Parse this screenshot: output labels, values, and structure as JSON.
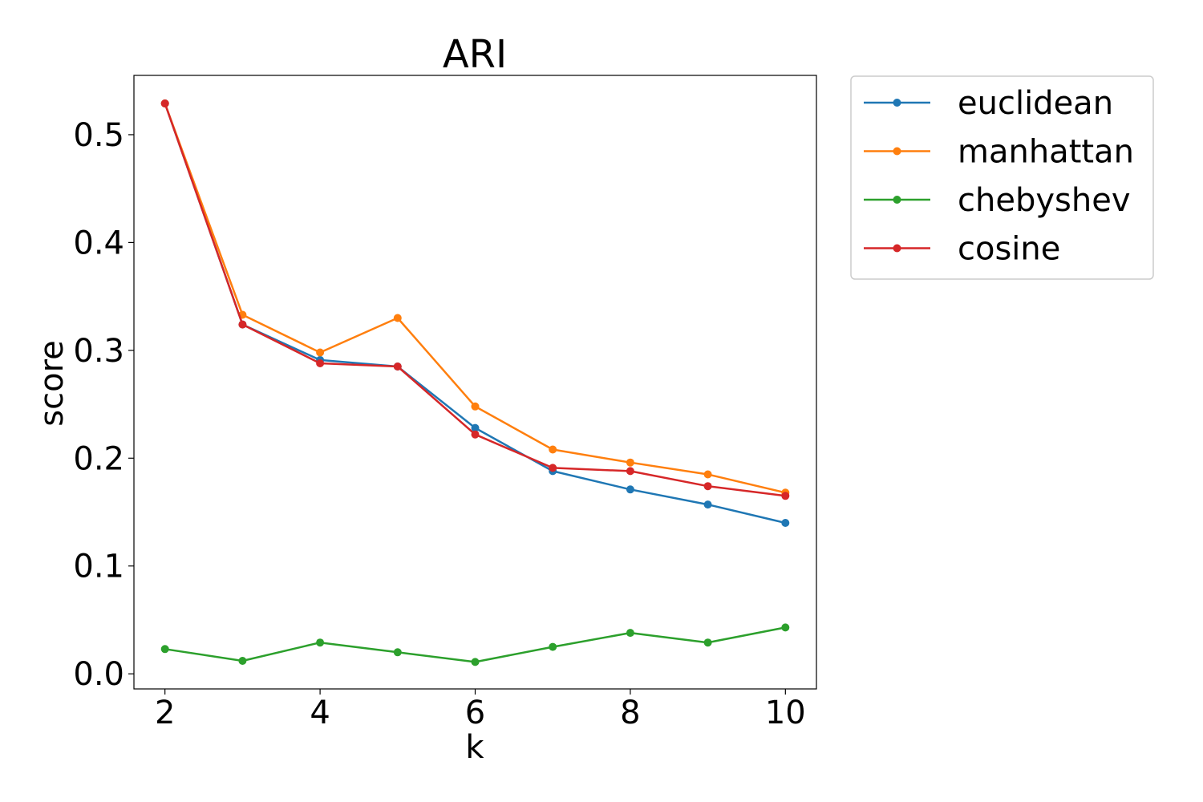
{
  "chart_data": {
    "type": "line",
    "title": "ARI",
    "xlabel": "k",
    "ylabel": "score",
    "x": [
      2,
      3,
      4,
      5,
      6,
      7,
      8,
      9,
      10
    ],
    "xlim": [
      1.6,
      10.4
    ],
    "ylim": [
      -0.014,
      0.555
    ],
    "xticks": [
      2,
      4,
      6,
      8,
      10
    ],
    "xtick_labels": [
      "2",
      "4",
      "6",
      "8",
      "10"
    ],
    "yticks": [
      0.0,
      0.1,
      0.2,
      0.3,
      0.4,
      0.5
    ],
    "ytick_labels": [
      "0.0",
      "0.1",
      "0.2",
      "0.3",
      "0.4",
      "0.5"
    ],
    "grid": false,
    "legend_position": "outside-top-right",
    "series": [
      {
        "name": "euclidean",
        "color": "#1f77b4",
        "values": [
          0.529,
          0.324,
          0.291,
          0.285,
          0.228,
          0.188,
          0.171,
          0.157,
          0.14
        ]
      },
      {
        "name": "manhattan",
        "color": "#ff7f0e",
        "values": [
          0.529,
          0.333,
          0.298,
          0.33,
          0.248,
          0.208,
          0.196,
          0.185,
          0.168
        ]
      },
      {
        "name": "chebyshev",
        "color": "#2ca02c",
        "values": [
          0.023,
          0.012,
          0.029,
          0.02,
          0.011,
          0.025,
          0.038,
          0.029,
          0.043
        ]
      },
      {
        "name": "cosine",
        "color": "#d62728",
        "values": [
          0.529,
          0.324,
          0.288,
          0.285,
          0.222,
          0.191,
          0.188,
          0.174,
          0.165
        ]
      }
    ]
  }
}
